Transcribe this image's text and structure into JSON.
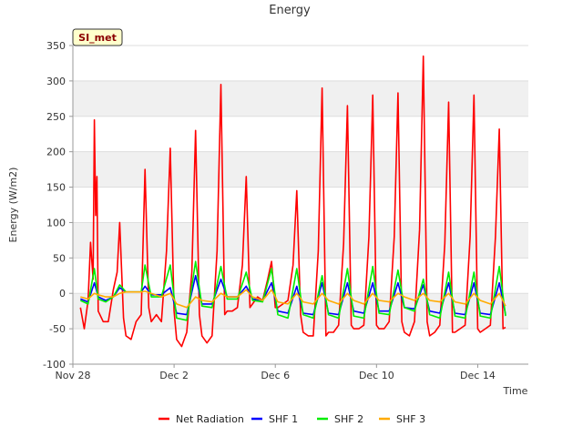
{
  "chart_data": {
    "type": "line",
    "title": "Energy",
    "xlabel": "Time",
    "ylabel": "Energy (W/m2)",
    "badge": "SI_met",
    "ylim": [
      -100,
      350
    ],
    "xlim": [
      0,
      18
    ],
    "yticks": [
      -100,
      -50,
      0,
      50,
      100,
      150,
      200,
      250,
      300,
      350
    ],
    "xticks": [
      {
        "value": 0,
        "label": "Nov 28"
      },
      {
        "value": 4,
        "label": "Dec 2"
      },
      {
        "value": 8,
        "label": "Dec 6"
      },
      {
        "value": 12,
        "label": "Dec 10"
      },
      {
        "value": 16,
        "label": "Dec 14"
      }
    ],
    "grid": true,
    "legend_position": "bottom",
    "series": [
      {
        "name": "Net Radiation",
        "color": "#ff0000",
        "x": [
          0.3,
          0.45,
          0.6,
          0.7,
          0.8,
          0.85,
          0.9,
          0.95,
          1.0,
          1.2,
          1.4,
          1.6,
          1.75,
          1.85,
          2.0,
          2.1,
          2.3,
          2.5,
          2.7,
          2.85,
          3.0,
          3.1,
          3.3,
          3.5,
          3.7,
          3.85,
          4.0,
          4.1,
          4.3,
          4.5,
          4.7,
          4.85,
          5.0,
          5.1,
          5.3,
          5.5,
          5.7,
          5.85,
          6.0,
          6.1,
          6.3,
          6.5,
          6.7,
          6.85,
          7.0,
          7.1,
          7.3,
          7.5,
          7.7,
          7.85,
          8.0,
          8.1,
          8.3,
          8.5,
          8.7,
          8.85,
          9.0,
          9.1,
          9.3,
          9.5,
          9.7,
          9.85,
          10.0,
          10.1,
          10.3,
          10.5,
          10.7,
          10.85,
          11.0,
          11.1,
          11.3,
          11.5,
          11.7,
          11.85,
          12.0,
          12.1,
          12.3,
          12.5,
          12.7,
          12.85,
          13.0,
          13.1,
          13.3,
          13.5,
          13.7,
          13.85,
          14.0,
          14.1,
          14.3,
          14.5,
          14.7,
          14.85,
          15.0,
          15.1,
          15.3,
          15.5,
          15.7,
          15.85,
          16.0,
          16.1,
          16.3,
          16.5,
          16.7,
          16.85,
          17.0,
          17.1
        ],
        "y": [
          -20,
          -50,
          -10,
          72,
          20,
          245,
          110,
          165,
          -25,
          -40,
          -40,
          5,
          30,
          100,
          -35,
          -60,
          -65,
          -40,
          -30,
          175,
          -20,
          -40,
          -30,
          -40,
          60,
          205,
          -25,
          -65,
          -75,
          -55,
          30,
          230,
          -30,
          -60,
          -70,
          -60,
          60,
          295,
          -30,
          -25,
          -25,
          -20,
          40,
          165,
          -20,
          -15,
          -5,
          -10,
          20,
          45,
          -20,
          -20,
          -15,
          -10,
          40,
          145,
          -30,
          -55,
          -60,
          -60,
          60,
          290,
          -60,
          -55,
          -55,
          -45,
          70,
          265,
          -45,
          -50,
          -50,
          -45,
          80,
          280,
          -45,
          -50,
          -50,
          -40,
          80,
          283,
          -40,
          -55,
          -60,
          -40,
          90,
          335,
          -40,
          -60,
          -55,
          -45,
          70,
          270,
          -55,
          -55,
          -50,
          -45,
          80,
          280,
          -50,
          -55,
          -50,
          -45,
          80,
          232,
          -50,
          -48
        ]
      },
      {
        "name": "SHF 1",
        "color": "#0000ff",
        "x": [
          0.3,
          0.6,
          0.85,
          1.0,
          1.3,
          1.6,
          1.85,
          2.1,
          2.4,
          2.7,
          2.85,
          3.1,
          3.5,
          3.85,
          4.1,
          4.5,
          4.85,
          5.1,
          5.5,
          5.85,
          6.1,
          6.5,
          6.85,
          7.1,
          7.5,
          7.85,
          8.1,
          8.5,
          8.85,
          9.1,
          9.5,
          9.85,
          10.1,
          10.5,
          10.85,
          11.1,
          11.5,
          11.85,
          12.1,
          12.5,
          12.85,
          13.1,
          13.5,
          13.85,
          14.1,
          14.5,
          14.85,
          15.1,
          15.5,
          15.85,
          16.1,
          16.5,
          16.85,
          17.1
        ],
        "y": [
          -8,
          -12,
          15,
          -5,
          -10,
          -5,
          8,
          2,
          2,
          2,
          10,
          -2,
          -2,
          8,
          -28,
          -30,
          25,
          -15,
          -15,
          20,
          -5,
          -5,
          10,
          -8,
          -10,
          15,
          -25,
          -28,
          10,
          -28,
          -30,
          15,
          -28,
          -30,
          15,
          -25,
          -28,
          15,
          -25,
          -25,
          15,
          -20,
          -22,
          12,
          -25,
          -28,
          15,
          -28,
          -30,
          15,
          -28,
          -30,
          15,
          -30
        ]
      },
      {
        "name": "SHF 2",
        "color": "#00ee00",
        "x": [
          0.3,
          0.6,
          0.85,
          1.0,
          1.3,
          1.6,
          1.85,
          2.1,
          2.4,
          2.7,
          2.85,
          3.1,
          3.5,
          3.85,
          4.1,
          4.5,
          4.85,
          5.1,
          5.5,
          5.85,
          6.1,
          6.5,
          6.85,
          7.1,
          7.5,
          7.85,
          8.1,
          8.5,
          8.85,
          9.1,
          9.5,
          9.85,
          10.1,
          10.5,
          10.85,
          11.1,
          11.5,
          11.85,
          12.1,
          12.5,
          12.85,
          13.1,
          13.5,
          13.85,
          14.1,
          14.5,
          14.85,
          15.1,
          15.5,
          15.85,
          16.1,
          16.5,
          16.85,
          17.1
        ],
        "y": [
          -10,
          -15,
          35,
          -8,
          -12,
          -5,
          12,
          2,
          2,
          2,
          40,
          -5,
          -5,
          40,
          -35,
          -38,
          45,
          -18,
          -20,
          38,
          -8,
          -8,
          30,
          -10,
          -12,
          35,
          -30,
          -35,
          35,
          -30,
          -35,
          25,
          -30,
          -35,
          35,
          -32,
          -35,
          38,
          -28,
          -30,
          33,
          -20,
          -25,
          20,
          -30,
          -35,
          30,
          -32,
          -35,
          30,
          -32,
          -35,
          38,
          -32
        ]
      },
      {
        "name": "SHF 3",
        "color": "#ffaa00",
        "x": [
          0.3,
          0.6,
          0.85,
          1.0,
          1.3,
          1.6,
          1.85,
          2.1,
          2.4,
          2.7,
          2.85,
          3.1,
          3.5,
          3.85,
          4.1,
          4.5,
          4.85,
          5.1,
          5.5,
          5.85,
          6.1,
          6.5,
          6.85,
          7.1,
          7.5,
          7.85,
          8.1,
          8.5,
          8.85,
          9.1,
          9.5,
          9.85,
          10.1,
          10.5,
          10.85,
          11.1,
          11.5,
          11.85,
          12.1,
          12.5,
          12.85,
          13.1,
          13.5,
          13.85,
          14.1,
          14.5,
          14.85,
          15.1,
          15.5,
          15.85,
          16.1,
          16.5,
          16.85,
          17.1
        ],
        "y": [
          -5,
          -8,
          0,
          -2,
          -5,
          -5,
          0,
          2,
          2,
          2,
          3,
          0,
          -5,
          0,
          -15,
          -20,
          -5,
          -10,
          -12,
          0,
          -5,
          -5,
          5,
          -5,
          -10,
          5,
          -12,
          -15,
          0,
          -12,
          -15,
          0,
          -10,
          -15,
          0,
          -10,
          -15,
          0,
          -10,
          -12,
          0,
          -5,
          -10,
          0,
          -10,
          -12,
          0,
          -12,
          -15,
          0,
          -10,
          -15,
          0,
          -18
        ]
      }
    ]
  }
}
